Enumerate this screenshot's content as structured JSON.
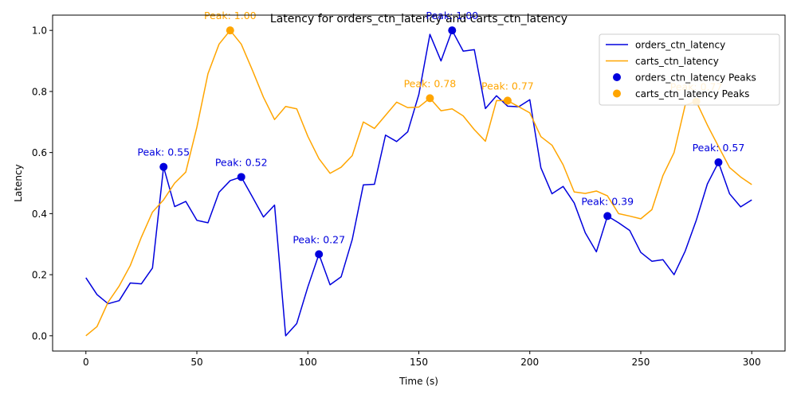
{
  "chart_data": {
    "type": "line",
    "title": "Latency for orders_ctn_latency and carts_ctn_latency",
    "xlabel": "Time (s)",
    "ylabel": "Latency",
    "xlim": [
      -15,
      315
    ],
    "ylim": [
      -0.05,
      1.05
    ],
    "xticks": [
      0,
      50,
      100,
      150,
      200,
      250,
      300
    ],
    "xtick_labels": [
      "0",
      "50",
      "100",
      "150",
      "200",
      "250",
      "300"
    ],
    "yticks": [
      0.0,
      0.2,
      0.4,
      0.6,
      0.8,
      1.0
    ],
    "ytick_labels": [
      "0.0",
      "0.2",
      "0.4",
      "0.6",
      "0.8",
      "1.0"
    ],
    "grid": false,
    "legend_position": "top-right",
    "x": [
      0,
      5,
      10,
      15,
      20,
      25,
      30,
      35,
      40,
      45,
      50,
      55,
      60,
      65,
      70,
      75,
      80,
      85,
      90,
      95,
      100,
      105,
      110,
      115,
      120,
      125,
      130,
      135,
      140,
      145,
      150,
      155,
      160,
      165,
      170,
      175,
      180,
      185,
      190,
      195,
      200,
      205,
      210,
      215,
      220,
      225,
      230,
      235,
      240,
      245,
      250,
      255,
      260,
      265,
      270,
      275,
      280,
      285,
      290,
      295,
      300
    ],
    "series": [
      {
        "name": "orders_ctn_latency",
        "color": "#0000dd",
        "values": [
          0.19,
          0.135,
          0.105,
          0.115,
          0.173,
          0.17,
          0.222,
          0.553,
          0.423,
          0.44,
          0.378,
          0.37,
          0.47,
          0.508,
          0.52,
          0.455,
          0.389,
          0.428,
          0.0,
          0.04,
          0.16,
          0.267,
          0.167,
          0.193,
          0.315,
          0.494,
          0.496,
          0.657,
          0.636,
          0.668,
          0.79,
          0.987,
          0.9,
          1.0,
          0.932,
          0.937,
          0.744,
          0.786,
          0.752,
          0.75,
          0.773,
          0.55,
          0.465,
          0.489,
          0.435,
          0.337,
          0.275,
          0.392,
          0.37,
          0.345,
          0.273,
          0.244,
          0.249,
          0.2,
          0.277,
          0.378,
          0.497,
          0.568,
          0.465,
          0.422,
          0.445
        ]
      },
      {
        "name": "carts_ctn_latency",
        "color": "#ffa500",
        "values": [
          0.0,
          0.03,
          0.11,
          0.163,
          0.23,
          0.323,
          0.405,
          0.445,
          0.5,
          0.536,
          0.683,
          0.858,
          0.955,
          1.0,
          0.955,
          0.87,
          0.781,
          0.708,
          0.751,
          0.743,
          0.653,
          0.58,
          0.532,
          0.552,
          0.59,
          0.7,
          0.679,
          0.722,
          0.765,
          0.747,
          0.749,
          0.778,
          0.737,
          0.743,
          0.72,
          0.675,
          0.637,
          0.77,
          0.77,
          0.75,
          0.73,
          0.652,
          0.624,
          0.56,
          0.471,
          0.466,
          0.474,
          0.458,
          0.4,
          0.392,
          0.383,
          0.413,
          0.525,
          0.6,
          0.755,
          0.767,
          0.69,
          0.62,
          0.551,
          0.52,
          0.495
        ]
      }
    ],
    "peaks": [
      {
        "series": "orders_ctn_latency",
        "color": "#0000dd",
        "points": [
          {
            "x": 35,
            "y": 0.553,
            "label": "Peak: 0.55"
          },
          {
            "x": 70,
            "y": 0.52,
            "label": "Peak: 0.52"
          },
          {
            "x": 105,
            "y": 0.267,
            "label": "Peak: 0.27"
          },
          {
            "x": 165,
            "y": 1.0,
            "label": "Peak: 1.00"
          },
          {
            "x": 235,
            "y": 0.392,
            "label": "Peak: 0.39"
          },
          {
            "x": 285,
            "y": 0.568,
            "label": "Peak: 0.57"
          }
        ]
      },
      {
        "series": "carts_ctn_latency",
        "color": "#ffa500",
        "points": [
          {
            "x": 65,
            "y": 1.0,
            "label": "Peak: 1.00"
          },
          {
            "x": 155,
            "y": 0.778,
            "label": "Peak: 0.78"
          },
          {
            "x": 190,
            "y": 0.77,
            "label": "Peak: 0.77"
          },
          {
            "x": 275,
            "y": 0.767,
            "label": "Peak: 0.77"
          }
        ]
      }
    ],
    "legend": [
      {
        "label": "orders_ctn_latency",
        "kind": "line",
        "color": "#0000dd"
      },
      {
        "label": "carts_ctn_latency",
        "kind": "line",
        "color": "#ffa500"
      },
      {
        "label": "orders_ctn_latency Peaks",
        "kind": "marker",
        "color": "#0000dd"
      },
      {
        "label": "carts_ctn_latency Peaks",
        "kind": "marker",
        "color": "#ffa500"
      }
    ]
  }
}
